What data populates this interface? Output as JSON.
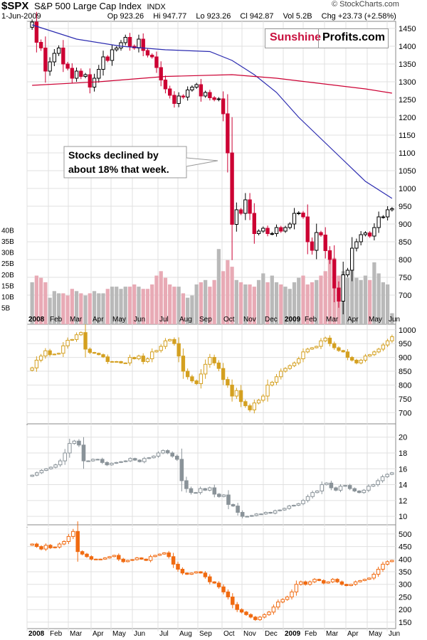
{
  "header": {
    "symbol": "$SPX",
    "name": "S&P 500 Large Cap Index",
    "exchange": "INDX",
    "date": "1-Jun-2009",
    "open_label": "Op",
    "open": "923.26",
    "high_label": "Hi",
    "high": "947.77",
    "low_label": "Lo",
    "low": "923.26",
    "close_label": "Cl",
    "close": "942.87",
    "volume_label": "Vol",
    "volume": "5.2B",
    "change_label": "Chg",
    "change": "+23.73 (+2.58%)",
    "credit": "© StockCharts.com"
  },
  "brand": {
    "part1": "Sunshine",
    "part2": "Profits.com"
  },
  "annotation": {
    "line1": "Stocks declined by",
    "line2": "about 18% that week."
  },
  "colors": {
    "up": "#000000",
    "down": "#cc0033",
    "sma_short": "#2b2bb0",
    "sma_long": "#cc0033",
    "vol_up": "#b9b9b9",
    "vol_down": "#e8aab5",
    "gold": "#d4a020",
    "silver": "#8a9399",
    "copper": "#f06a10",
    "grid": "#e0e0e0"
  },
  "chart_data": [
    {
      "type": "candlestick",
      "panel": "main",
      "yticks": [
        700,
        750,
        800,
        850,
        900,
        950,
        1000,
        1050,
        1100,
        1150,
        1200,
        1250,
        1300,
        1350,
        1400,
        1450
      ],
      "ylim": [
        650,
        1470
      ],
      "volume_ticks": [
        "5B",
        "10B",
        "15B",
        "20B",
        "25B",
        "30B",
        "35B",
        "40B"
      ],
      "x_labels": [
        "2008",
        "Feb",
        "Mar",
        "Apr",
        "May",
        "Jun",
        "Jul",
        "Aug",
        "Sep",
        "Oct",
        "Nov",
        "Dec",
        "2009",
        "Feb",
        "Mar",
        "Apr",
        "May",
        "Jun"
      ],
      "close": [
        1468,
        1411,
        1395,
        1330,
        1356,
        1380,
        1395,
        1350,
        1338,
        1310,
        1330,
        1315,
        1320,
        1285,
        1310,
        1335,
        1370,
        1360,
        1390,
        1395,
        1410,
        1425,
        1400,
        1395,
        1420,
        1388,
        1375,
        1370,
        1340,
        1305,
        1280,
        1262,
        1239,
        1260,
        1257,
        1277,
        1285,
        1292,
        1260,
        1270,
        1255,
        1250,
        1252,
        1210,
        1100,
        899,
        940,
        930,
        968,
        930,
        873,
        880,
        888,
        873,
        873,
        890,
        880,
        890,
        900,
        930,
        931,
        920,
        850,
        826,
        876,
        869,
        825,
        800,
        720,
        683,
        757,
        770,
        832,
        850,
        870,
        875,
        866,
        890,
        920,
        920,
        940,
        943
      ],
      "volume_billion": [
        19,
        22,
        21,
        19,
        12,
        15,
        14,
        14,
        13,
        16,
        15,
        14,
        13,
        14,
        15,
        14,
        14,
        16,
        17,
        17,
        16,
        17,
        17,
        18,
        17,
        16,
        16,
        18,
        22,
        24,
        21,
        18,
        17,
        17,
        14,
        12,
        13,
        18,
        19,
        20,
        17,
        20,
        34,
        24,
        29,
        26,
        20,
        19,
        18,
        18,
        17,
        20,
        23,
        19,
        22,
        19,
        18,
        17,
        16,
        19,
        21,
        22,
        18,
        19,
        20,
        22,
        24,
        29,
        30,
        22,
        24,
        21,
        26,
        21,
        20,
        22,
        20,
        28,
        23,
        19,
        18,
        5
      ],
      "sma_short_pts": [
        [
          0,
          1460
        ],
        [
          10,
          1420
        ],
        [
          20,
          1400
        ],
        [
          30,
          1390
        ],
        [
          40,
          1385
        ],
        [
          45,
          1360
        ],
        [
          50,
          1320
        ],
        [
          55,
          1270
        ],
        [
          60,
          1200
        ],
        [
          65,
          1140
        ],
        [
          70,
          1080
        ],
        [
          75,
          1020
        ],
        [
          81,
          972
        ]
      ],
      "sma_long_pts": [
        [
          0,
          1290
        ],
        [
          15,
          1300
        ],
        [
          30,
          1315
        ],
        [
          45,
          1320
        ],
        [
          55,
          1310
        ],
        [
          65,
          1295
        ],
        [
          75,
          1280
        ],
        [
          81,
          1268
        ]
      ]
    },
    {
      "type": "candlestick",
      "panel": "gold",
      "yticks": [
        700,
        750,
        800,
        850,
        900,
        950,
        1000
      ],
      "ylim": [
        675,
        1020
      ],
      "x_labels": [],
      "close": [
        862,
        890,
        905,
        924,
        910,
        912,
        915,
        942,
        962,
        965,
        982,
        990,
        930,
        918,
        915,
        910,
        902,
        885,
        884,
        885,
        880,
        880,
        900,
        895,
        905,
        885,
        895,
        920,
        925,
        940,
        960,
        965,
        950,
        905,
        850,
        830,
        815,
        805,
        840,
        875,
        900,
        880,
        860,
        820,
        800,
        760,
        780,
        740,
        725,
        710,
        735,
        745,
        760,
        800,
        810,
        830,
        850,
        860,
        870,
        880,
        895,
        920,
        930,
        935,
        940,
        960,
        970,
        950,
        935,
        925,
        920,
        900,
        890,
        880,
        890,
        905,
        910,
        920,
        930,
        945,
        960,
        975
      ]
    },
    {
      "type": "candlestick",
      "panel": "silver",
      "yticks": [
        10,
        12,
        14,
        16,
        18,
        20
      ],
      "ylim": [
        9.2,
        21.5
      ],
      "x_labels": [],
      "close": [
        15.2,
        15.5,
        15.8,
        16.0,
        16.2,
        16.5,
        17.0,
        18.0,
        19.2,
        19.5,
        19.0,
        17.0,
        17.0,
        17.2,
        17.2,
        16.8,
        16.5,
        16.7,
        16.8,
        16.9,
        17.0,
        17.3,
        17.1,
        16.9,
        17.3,
        17.4,
        17.6,
        18.0,
        18.3,
        18.0,
        17.6,
        17.2,
        14.5,
        13.5,
        13.0,
        13.0,
        13.5,
        13.3,
        13.6,
        12.8,
        12.5,
        12.7,
        11.5,
        11.3,
        10.5,
        10.0,
        10.0,
        10.1,
        10.3,
        10.3,
        10.5,
        10.4,
        10.7,
        10.8,
        11.0,
        11.3,
        11.4,
        11.6,
        12.0,
        12.5,
        13.0,
        13.2,
        14.0,
        14.2,
        13.6,
        13.3,
        13.8,
        13.9,
        13.5,
        13.2,
        13.0,
        13.3,
        13.8,
        14.0,
        14.5,
        15.0,
        15.3,
        15.5
      ]
    },
    {
      "type": "candlestick",
      "panel": "copper",
      "yticks": [
        150,
        200,
        250,
        300,
        350,
        400,
        450,
        500
      ],
      "ylim": [
        130,
        525
      ],
      "x_labels": [
        "2008",
        "Feb",
        "Mar",
        "Apr",
        "May",
        "Jun",
        "Jul",
        "Aug",
        "Sep",
        "Oct",
        "Nov",
        "Dec",
        "2009",
        "Feb",
        "Mar",
        "Apr",
        "May",
        "Jun"
      ],
      "close": [
        460,
        450,
        440,
        455,
        445,
        448,
        460,
        470,
        490,
        510,
        430,
        420,
        410,
        400,
        400,
        400,
        405,
        410,
        415,
        400,
        390,
        395,
        398,
        405,
        400,
        395,
        410,
        415,
        420,
        425,
        410,
        380,
        360,
        345,
        340,
        345,
        350,
        345,
        330,
        310,
        305,
        290,
        270,
        250,
        220,
        200,
        190,
        180,
        170,
        160,
        170,
        180,
        190,
        210,
        230,
        240,
        250,
        270,
        300,
        310,
        300,
        310,
        320,
        315,
        305,
        310,
        320,
        310,
        300,
        295,
        300,
        310,
        315,
        320,
        325,
        340,
        360,
        380,
        390,
        395
      ]
    }
  ]
}
